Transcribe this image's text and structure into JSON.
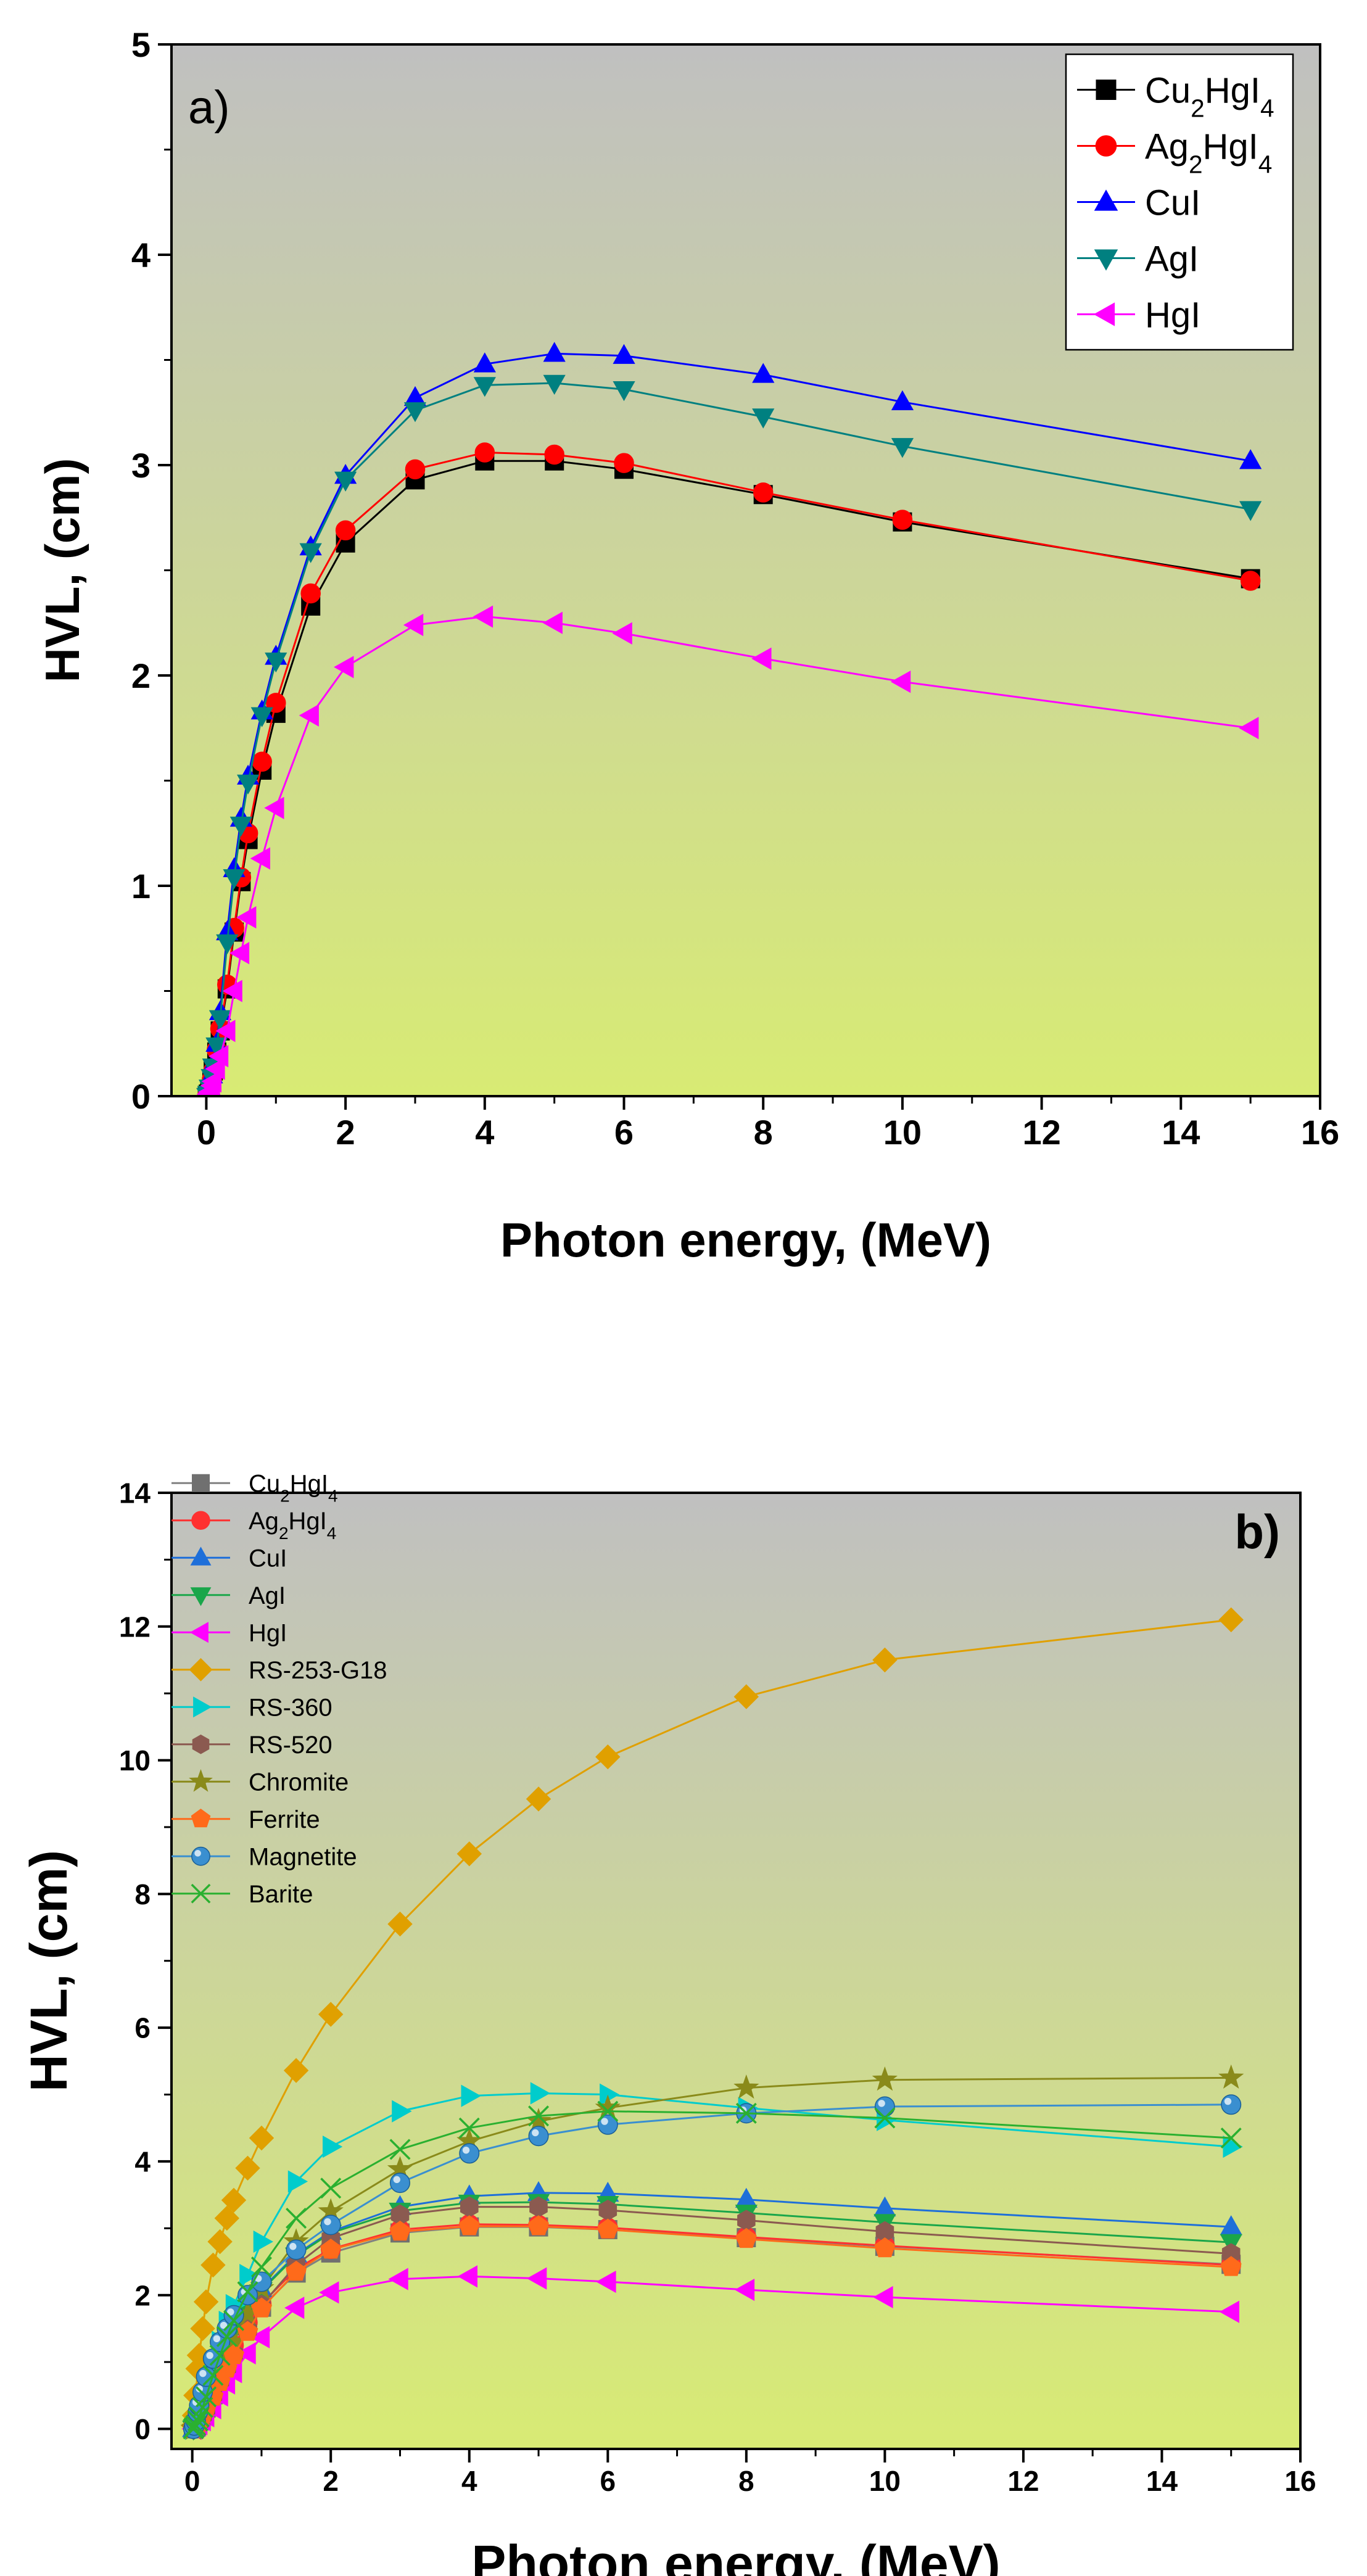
{
  "chart_data": [
    {
      "type": "line",
      "panel_label": "a)",
      "xlabel": "Photon energy, (MeV)",
      "ylabel": "HVL, (cm)",
      "xlim": [
        -0.5,
        16
      ],
      "ylim": [
        0,
        5
      ],
      "xticks": [
        0,
        2,
        4,
        6,
        8,
        10,
        12,
        14,
        16
      ],
      "yticks": [
        0,
        1,
        2,
        3,
        4,
        5
      ],
      "legend_position": "top-right",
      "background": {
        "top": "#c0c0c0",
        "bottom": "#d8eb74"
      },
      "series": [
        {
          "name": "Cu₂HgI₄",
          "label_base": [
            "Cu",
            "2",
            "HgI",
            "4"
          ],
          "color": "#000000",
          "line": "#000000",
          "marker": "square",
          "x": [
            0.015,
            0.03,
            0.05,
            0.08,
            0.1,
            0.15,
            0.2,
            0.3,
            0.4,
            0.5,
            0.6,
            0.8,
            1,
            1.5,
            2,
            3,
            4,
            5,
            6,
            8,
            10,
            15
          ],
          "y": [
            0.0,
            0.01,
            0.03,
            0.08,
            0.12,
            0.21,
            0.31,
            0.51,
            0.78,
            1.02,
            1.22,
            1.55,
            1.82,
            2.33,
            2.63,
            2.93,
            3.02,
            3.02,
            2.98,
            2.86,
            2.73,
            2.46
          ]
        },
        {
          "name": "Ag₂HgI₄",
          "label_base": [
            "Ag",
            "2",
            "HgI",
            "4"
          ],
          "color": "#ff0000",
          "line": "#ff0000",
          "marker": "circle",
          "x": [
            0.015,
            0.03,
            0.05,
            0.08,
            0.1,
            0.15,
            0.2,
            0.3,
            0.4,
            0.5,
            0.6,
            0.8,
            1,
            1.5,
            2,
            3,
            4,
            5,
            6,
            8,
            10,
            15
          ],
          "y": [
            0.0,
            0.01,
            0.03,
            0.08,
            0.12,
            0.22,
            0.32,
            0.53,
            0.8,
            1.04,
            1.25,
            1.59,
            1.87,
            2.39,
            2.69,
            2.98,
            3.06,
            3.05,
            3.01,
            2.87,
            2.74,
            2.45
          ]
        },
        {
          "name": "CuI",
          "label_base": [
            "CuI"
          ],
          "color": "#0000ff",
          "line": "#0000ff",
          "marker": "triangle-up",
          "x": [
            0.015,
            0.03,
            0.05,
            0.08,
            0.1,
            0.15,
            0.2,
            0.3,
            0.4,
            0.5,
            0.6,
            0.8,
            1,
            1.5,
            2,
            3,
            4,
            5,
            6,
            8,
            10,
            15
          ],
          "y": [
            0.0,
            0.01,
            0.04,
            0.1,
            0.15,
            0.25,
            0.4,
            0.78,
            1.08,
            1.32,
            1.52,
            1.83,
            2.09,
            2.61,
            2.95,
            3.32,
            3.48,
            3.53,
            3.52,
            3.43,
            3.3,
            3.02
          ]
        },
        {
          "name": "AgI",
          "label_base": [
            "AgI"
          ],
          "color": "#008080",
          "line": "#008080",
          "marker": "triangle-down",
          "x": [
            0.015,
            0.03,
            0.05,
            0.08,
            0.1,
            0.15,
            0.2,
            0.3,
            0.4,
            0.5,
            0.6,
            0.8,
            1,
            1.5,
            2,
            3,
            4,
            5,
            6,
            8,
            10,
            15
          ],
          "y": [
            0.0,
            0.01,
            0.04,
            0.09,
            0.14,
            0.24,
            0.37,
            0.73,
            1.04,
            1.29,
            1.49,
            1.81,
            2.07,
            2.59,
            2.93,
            3.26,
            3.38,
            3.39,
            3.36,
            3.23,
            3.09,
            2.79
          ]
        },
        {
          "name": "HgI",
          "label_base": [
            "HgI"
          ],
          "color": "#ff00ff",
          "line": "#ff00ff",
          "marker": "triangle-left",
          "x": [
            0.015,
            0.03,
            0.05,
            0.08,
            0.1,
            0.15,
            0.2,
            0.3,
            0.4,
            0.5,
            0.6,
            0.8,
            1,
            1.5,
            2,
            3,
            4,
            5,
            6,
            8,
            10,
            15
          ],
          "y": [
            0.0,
            0.01,
            0.02,
            0.05,
            0.07,
            0.13,
            0.19,
            0.31,
            0.5,
            0.68,
            0.85,
            1.13,
            1.37,
            1.81,
            2.04,
            2.24,
            2.28,
            2.25,
            2.2,
            2.08,
            1.97,
            1.75
          ]
        }
      ]
    },
    {
      "type": "line",
      "panel_label": "b)",
      "xlabel": "Photon energy, (MeV)",
      "ylabel": "HVL, (cm)",
      "xlim": [
        -0.3,
        16
      ],
      "ylim": [
        -0.3,
        14
      ],
      "xticks": [
        0,
        2,
        4,
        6,
        8,
        10,
        12,
        14,
        16
      ],
      "yticks": [
        0,
        2,
        4,
        6,
        8,
        10,
        12,
        14
      ],
      "legend_position": "top-left",
      "background": {
        "top": "#c0c0c0",
        "bottom": "#d8eb74"
      },
      "series": [
        {
          "name": "Cu₂HgI₄",
          "label_base": [
            "Cu",
            "2",
            "HgI",
            "4"
          ],
          "color": "#707070",
          "line": "#808080",
          "marker": "square",
          "x": [
            0.015,
            0.03,
            0.05,
            0.08,
            0.1,
            0.15,
            0.2,
            0.3,
            0.4,
            0.5,
            0.6,
            0.8,
            1,
            1.5,
            2,
            3,
            4,
            5,
            6,
            8,
            10,
            15
          ],
          "y": [
            0.0,
            0.01,
            0.03,
            0.08,
            0.12,
            0.21,
            0.31,
            0.51,
            0.78,
            1.02,
            1.22,
            1.55,
            1.82,
            2.33,
            2.63,
            2.93,
            3.02,
            3.02,
            2.98,
            2.86,
            2.73,
            2.46
          ]
        },
        {
          "name": "Ag₂HgI₄",
          "label_base": [
            "Ag",
            "2",
            "HgI",
            "4"
          ],
          "color": "#ff3030",
          "line": "#ff3030",
          "marker": "circle",
          "x": [
            0.015,
            0.03,
            0.05,
            0.08,
            0.1,
            0.15,
            0.2,
            0.3,
            0.4,
            0.5,
            0.6,
            0.8,
            1,
            1.5,
            2,
            3,
            4,
            5,
            6,
            8,
            10,
            15
          ],
          "y": [
            0.0,
            0.01,
            0.03,
            0.08,
            0.12,
            0.22,
            0.32,
            0.53,
            0.8,
            1.04,
            1.25,
            1.59,
            1.87,
            2.39,
            2.69,
            2.98,
            3.06,
            3.05,
            3.01,
            2.87,
            2.74,
            2.45
          ]
        },
        {
          "name": "CuI",
          "label_base": [
            "CuI"
          ],
          "color": "#1e6fd9",
          "line": "#1e6fd9",
          "marker": "triangle-up",
          "x": [
            0.015,
            0.03,
            0.05,
            0.08,
            0.1,
            0.15,
            0.2,
            0.3,
            0.4,
            0.5,
            0.6,
            0.8,
            1,
            1.5,
            2,
            3,
            4,
            5,
            6,
            8,
            10,
            15
          ],
          "y": [
            0.0,
            0.01,
            0.04,
            0.1,
            0.15,
            0.25,
            0.4,
            0.78,
            1.08,
            1.32,
            1.52,
            1.83,
            2.09,
            2.61,
            2.95,
            3.32,
            3.48,
            3.53,
            3.52,
            3.43,
            3.3,
            3.02
          ]
        },
        {
          "name": "AgI",
          "label_base": [
            "AgI"
          ],
          "color": "#1aa64a",
          "line": "#1aa64a",
          "marker": "triangle-down",
          "x": [
            0.015,
            0.03,
            0.05,
            0.08,
            0.1,
            0.15,
            0.2,
            0.3,
            0.4,
            0.5,
            0.6,
            0.8,
            1,
            1.5,
            2,
            3,
            4,
            5,
            6,
            8,
            10,
            15
          ],
          "y": [
            0.0,
            0.01,
            0.04,
            0.09,
            0.14,
            0.24,
            0.37,
            0.73,
            1.04,
            1.29,
            1.49,
            1.81,
            2.07,
            2.59,
            2.93,
            3.26,
            3.38,
            3.39,
            3.36,
            3.23,
            3.09,
            2.79
          ]
        },
        {
          "name": "HgI",
          "label_base": [
            "HgI"
          ],
          "color": "#ff00ff",
          "line": "#ff00ff",
          "marker": "triangle-left",
          "x": [
            0.015,
            0.03,
            0.05,
            0.08,
            0.1,
            0.15,
            0.2,
            0.3,
            0.4,
            0.5,
            0.6,
            0.8,
            1,
            1.5,
            2,
            3,
            4,
            5,
            6,
            8,
            10,
            15
          ],
          "y": [
            0.0,
            0.01,
            0.02,
            0.05,
            0.07,
            0.13,
            0.19,
            0.31,
            0.5,
            0.68,
            0.85,
            1.13,
            1.37,
            1.81,
            2.04,
            2.24,
            2.28,
            2.25,
            2.2,
            2.08,
            1.97,
            1.75
          ]
        },
        {
          "name": "RS-253-G18",
          "label_base": [
            "RS-253-G18"
          ],
          "color": "#e0a000",
          "line": "#e0a000",
          "marker": "diamond",
          "x": [
            0.015,
            0.03,
            0.05,
            0.08,
            0.1,
            0.15,
            0.2,
            0.3,
            0.4,
            0.5,
            0.6,
            0.8,
            1,
            1.5,
            2,
            3,
            4,
            5,
            6,
            8,
            10,
            15
          ],
          "y": [
            0.05,
            0.2,
            0.5,
            0.9,
            1.1,
            1.5,
            1.9,
            2.45,
            2.8,
            3.15,
            3.42,
            3.9,
            4.35,
            5.36,
            6.2,
            7.55,
            8.6,
            9.42,
            10.05,
            10.95,
            11.5,
            12.1
          ]
        },
        {
          "name": "RS-360",
          "label_base": [
            "RS-360"
          ],
          "color": "#00cccc",
          "line": "#00cccc",
          "marker": "triangle-right",
          "x": [
            0.015,
            0.03,
            0.05,
            0.08,
            0.1,
            0.15,
            0.2,
            0.3,
            0.4,
            0.5,
            0.6,
            0.8,
            1,
            1.5,
            2,
            3,
            4,
            5,
            6,
            8,
            10,
            15
          ],
          "y": [
            0.0,
            0.02,
            0.05,
            0.15,
            0.22,
            0.38,
            0.58,
            0.95,
            1.3,
            1.6,
            1.85,
            2.3,
            2.8,
            3.7,
            4.22,
            4.75,
            4.98,
            5.02,
            5.0,
            4.8,
            4.62,
            4.22
          ]
        },
        {
          "name": "RS-520",
          "label_base": [
            "RS-520"
          ],
          "color": "#8b5a50",
          "line": "#8b5a50",
          "marker": "hexagon",
          "x": [
            0.015,
            0.03,
            0.05,
            0.08,
            0.1,
            0.15,
            0.2,
            0.3,
            0.4,
            0.5,
            0.6,
            0.8,
            1,
            1.5,
            2,
            3,
            4,
            5,
            6,
            8,
            10,
            15
          ],
          "y": [
            0.0,
            0.01,
            0.02,
            0.06,
            0.1,
            0.2,
            0.3,
            0.5,
            0.72,
            0.92,
            1.12,
            1.48,
            1.85,
            2.45,
            2.85,
            3.2,
            3.32,
            3.32,
            3.27,
            3.12,
            2.95,
            2.62
          ]
        },
        {
          "name": "Chromite",
          "label_base": [
            "Chromite"
          ],
          "color": "#8a8a1a",
          "line": "#8a8a1a",
          "marker": "star",
          "x": [
            0.015,
            0.03,
            0.05,
            0.08,
            0.1,
            0.15,
            0.2,
            0.3,
            0.4,
            0.5,
            0.6,
            0.8,
            1,
            1.5,
            2,
            3,
            4,
            5,
            6,
            8,
            10,
            15
          ],
          "y": [
            0.0,
            0.01,
            0.03,
            0.08,
            0.12,
            0.22,
            0.34,
            0.58,
            0.82,
            1.05,
            1.3,
            1.72,
            2.1,
            2.8,
            3.25,
            3.88,
            4.3,
            4.6,
            4.8,
            5.1,
            5.22,
            5.25
          ]
        },
        {
          "name": "Ferrite",
          "label_base": [
            "Ferrite"
          ],
          "color": "#ff6a1a",
          "line": "#ff6a1a",
          "marker": "pentagon",
          "x": [
            0.015,
            0.03,
            0.05,
            0.08,
            0.1,
            0.15,
            0.2,
            0.3,
            0.4,
            0.5,
            0.6,
            0.8,
            1,
            1.5,
            2,
            3,
            4,
            5,
            6,
            8,
            10,
            15
          ],
          "y": [
            0.0,
            0.01,
            0.02,
            0.06,
            0.1,
            0.2,
            0.3,
            0.48,
            0.7,
            0.9,
            1.1,
            1.45,
            1.8,
            2.35,
            2.68,
            2.95,
            3.03,
            3.03,
            2.98,
            2.84,
            2.7,
            2.42
          ]
        },
        {
          "name": "Magnetite",
          "label_base": [
            "Magnetite"
          ],
          "color": "#3a8fd0",
          "line": "#3a8fd0",
          "marker": "sphere",
          "x": [
            0.015,
            0.03,
            0.05,
            0.08,
            0.1,
            0.15,
            0.2,
            0.3,
            0.4,
            0.5,
            0.6,
            0.8,
            1,
            1.5,
            2,
            3,
            4,
            5,
            6,
            8,
            10,
            15
          ],
          "y": [
            0.0,
            0.05,
            0.12,
            0.25,
            0.35,
            0.55,
            0.78,
            1.05,
            1.3,
            1.5,
            1.7,
            2.0,
            2.2,
            2.68,
            3.05,
            3.68,
            4.12,
            4.38,
            4.55,
            4.72,
            4.82,
            4.85
          ]
        },
        {
          "name": "Barite",
          "label_base": [
            "Barite"
          ],
          "color": "#2ab030",
          "line": "#2ab030",
          "marker": "x",
          "x": [
            0.015,
            0.03,
            0.05,
            0.08,
            0.1,
            0.15,
            0.2,
            0.3,
            0.4,
            0.5,
            0.6,
            0.8,
            1,
            1.5,
            2,
            3,
            4,
            5,
            6,
            8,
            10,
            15
          ],
          "y": [
            0.0,
            0.02,
            0.05,
            0.12,
            0.18,
            0.32,
            0.48,
            0.8,
            1.1,
            1.38,
            1.62,
            2.05,
            2.42,
            3.15,
            3.6,
            4.18,
            4.5,
            4.68,
            4.75,
            4.72,
            4.65,
            4.35
          ]
        }
      ]
    }
  ]
}
